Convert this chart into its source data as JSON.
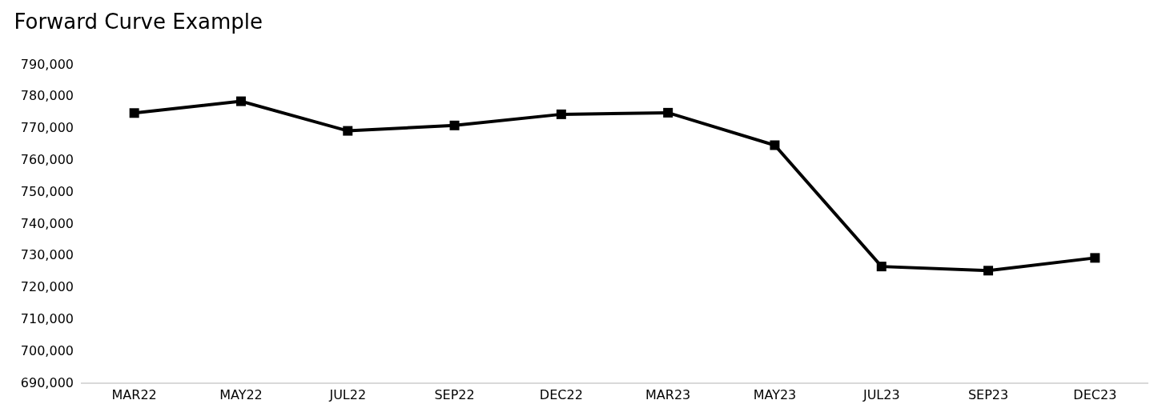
{
  "chart_data": {
    "type": "line",
    "title": "Forward Curve Example",
    "categories": [
      "MAR22",
      "MAY22",
      "JUL22",
      "SEP22",
      "DEC22",
      "MAR23",
      "MAY23",
      "JUL23",
      "SEP23",
      "DEC23"
    ],
    "series": [
      {
        "color": "#000000",
        "values": [
          774600,
          778300,
          769000,
          770700,
          774200,
          774700,
          764500,
          726400,
          725100,
          729100
        ]
      }
    ],
    "ylim": [
      690000,
      790000
    ],
    "yticks": [
      {
        "value": 690000,
        "label": "690,000"
      },
      {
        "value": 700000,
        "label": "700,000"
      },
      {
        "value": 710000,
        "label": "710,000"
      },
      {
        "value": 720000,
        "label": "720,000"
      },
      {
        "value": 730000,
        "label": "730,000"
      },
      {
        "value": 740000,
        "label": "740,000"
      },
      {
        "value": 750000,
        "label": "750,000"
      },
      {
        "value": 760000,
        "label": "760,000"
      },
      {
        "value": 770000,
        "label": "770,000"
      },
      {
        "value": 780000,
        "label": "780,000"
      },
      {
        "value": 790000,
        "label": "790,000"
      }
    ],
    "grid": false,
    "marker": "square",
    "line_style": "solid"
  }
}
